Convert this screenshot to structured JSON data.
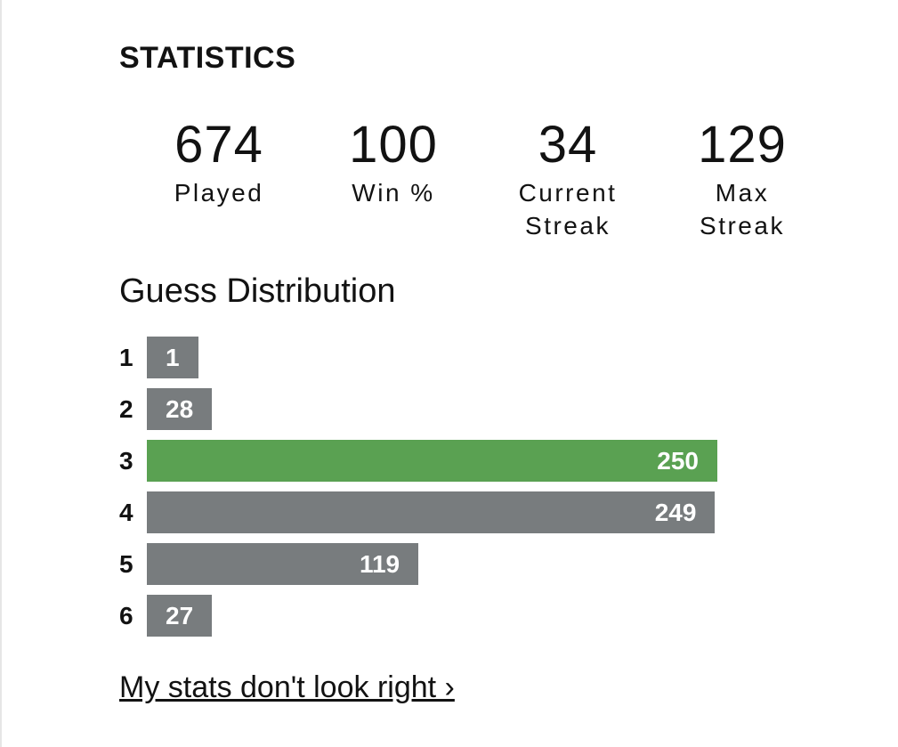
{
  "title": "STATISTICS",
  "stats": [
    {
      "value": 674,
      "label": "Played"
    },
    {
      "value": 100,
      "label": "Win %"
    },
    {
      "value": 34,
      "label": "Current Streak"
    },
    {
      "value": 129,
      "label": "Max Streak"
    }
  ],
  "distribution": {
    "title": "Guess Distribution",
    "categories": [
      "1",
      "2",
      "3",
      "4",
      "5",
      "6"
    ],
    "values": [
      1,
      28,
      250,
      249,
      119,
      27
    ],
    "colors": [
      "#787c7e",
      "#787c7e",
      "#5aa152",
      "#787c7e",
      "#787c7e",
      "#787c7e"
    ]
  },
  "link": "My stats don't look right ›"
}
